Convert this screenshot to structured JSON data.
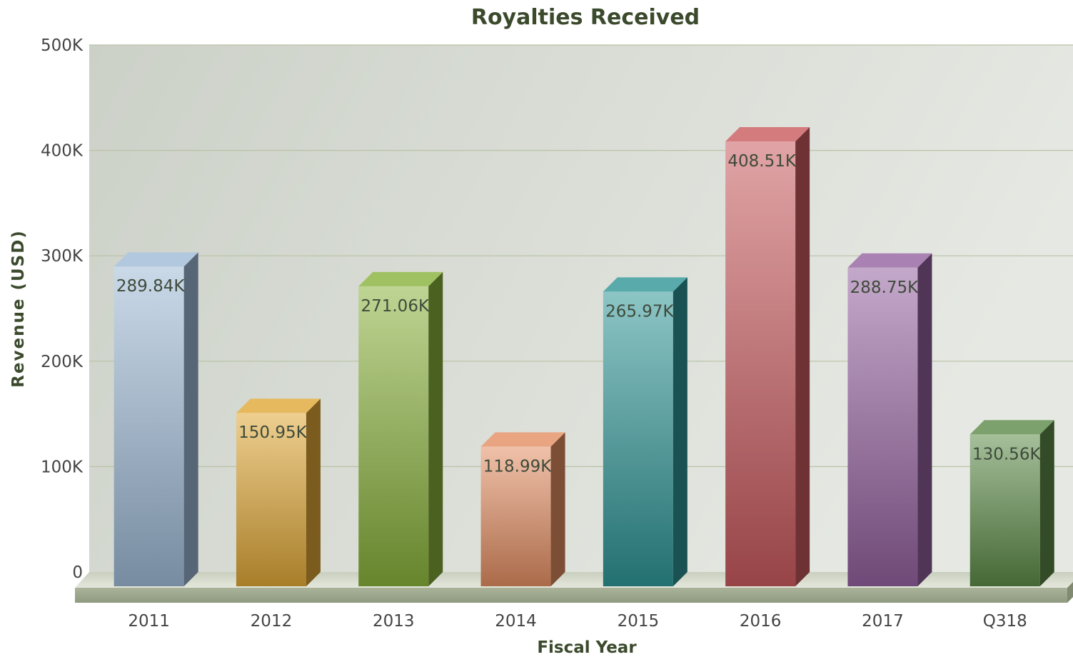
{
  "chart_data": {
    "type": "bar",
    "title": "Royalties Received",
    "xlabel": "Fiscal Year",
    "ylabel": "Revenue (USD)",
    "categories": [
      "2011",
      "2012",
      "2013",
      "2014",
      "2015",
      "2016",
      "2017",
      "Q318"
    ],
    "values": [
      289840,
      150950,
      271060,
      118990,
      265970,
      408510,
      288750,
      130560
    ],
    "data_labels": [
      "289.84K",
      "150.95K",
      "271.06K",
      "118.99K",
      "265.97K",
      "408.51K",
      "288.75K",
      "130.56K"
    ],
    "yticks": [
      0,
      100000,
      200000,
      300000,
      400000,
      500000
    ],
    "ytick_labels": [
      "0",
      "100K",
      "200K",
      "300K",
      "400K",
      "500K"
    ],
    "ylim": [
      0,
      500000
    ],
    "grid": true,
    "style": "3d",
    "colors": [
      "#9fbad6",
      "#e0a836",
      "#88b13a",
      "#e48e62",
      "#2f9596",
      "#c95a5e",
      "#94619f",
      "#5c8a47"
    ],
    "background_color": "#d7dbd3",
    "gridline_color": "#b9c2a6"
  }
}
